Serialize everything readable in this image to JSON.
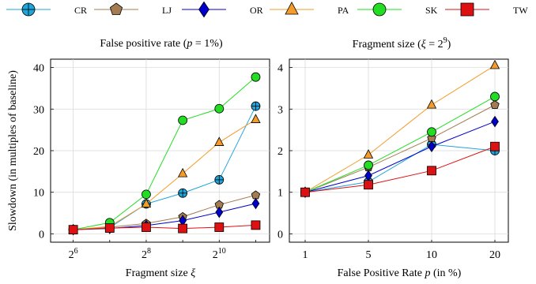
{
  "legend": {
    "items": [
      {
        "label": "CR",
        "color": "#1fa4dc",
        "marker": "circle-plus"
      },
      {
        "label": "LJ",
        "color": "#a57c52",
        "marker": "pentagon"
      },
      {
        "label": "OR",
        "color": "#0000cc",
        "marker": "diamond"
      },
      {
        "label": "PA",
        "color": "#f39c2b",
        "marker": "triangle"
      },
      {
        "label": "SK",
        "color": "#22dd22",
        "marker": "circle"
      },
      {
        "label": "TW",
        "color": "#dd1111",
        "marker": "square"
      }
    ]
  },
  "chart_data": [
    {
      "type": "line",
      "title": "False positive rate (p = 1%)",
      "xlabel": "Fragment size ξ",
      "ylabel": "Slowdown (in multiples of baseline)",
      "x_scale": "log2",
      "x": [
        64,
        128,
        256,
        512,
        1024,
        2048
      ],
      "x_ticks": [
        64,
        256,
        1024
      ],
      "x_tick_labels": [
        [
          "2",
          "6"
        ],
        [
          "2",
          "8"
        ],
        [
          "2",
          "10"
        ]
      ],
      "ylim": [
        0,
        42
      ],
      "y_ticks": [
        0,
        10,
        20,
        30,
        40
      ],
      "grid": true,
      "series": [
        {
          "name": "CR",
          "values": [
            1,
            1.5,
            7.2,
            9.8,
            13,
            30.7
          ]
        },
        {
          "name": "LJ",
          "values": [
            1,
            1.6,
            2.5,
            4.1,
            7.0,
            9.3
          ]
        },
        {
          "name": "OR",
          "values": [
            1,
            1.3,
            2.0,
            3.2,
            5.2,
            7.3
          ]
        },
        {
          "name": "PA",
          "values": [
            1,
            1.8,
            7.2,
            14.5,
            22,
            27.5
          ]
        },
        {
          "name": "SK",
          "values": [
            1,
            2.7,
            9.5,
            27.3,
            30.1,
            37.7
          ]
        },
        {
          "name": "TW",
          "values": [
            1,
            1.4,
            1.6,
            1.3,
            1.6,
            2.1
          ]
        }
      ]
    },
    {
      "type": "line",
      "title": "Fragment size (ξ = 2^9)",
      "xlabel": "False Positive Rate p (in %)",
      "ylabel": "",
      "x": [
        1,
        5,
        10,
        20
      ],
      "x_tick_labels": [
        "1",
        "5",
        "10",
        "20"
      ],
      "ylim": [
        -0.2,
        4.2
      ],
      "y_ticks": [
        0,
        1,
        2,
        3,
        4
      ],
      "grid": true,
      "series": [
        {
          "name": "CR",
          "values": [
            1,
            1.25,
            2.15,
            2.0
          ]
        },
        {
          "name": "LJ",
          "values": [
            1,
            1.6,
            2.3,
            3.1
          ]
        },
        {
          "name": "OR",
          "values": [
            1,
            1.4,
            2.1,
            2.7
          ]
        },
        {
          "name": "PA",
          "values": [
            1,
            1.9,
            3.1,
            4.05
          ]
        },
        {
          "name": "SK",
          "values": [
            1,
            1.65,
            2.45,
            3.3
          ]
        },
        {
          "name": "TW",
          "values": [
            1,
            1.18,
            1.52,
            2.1
          ]
        }
      ]
    }
  ]
}
